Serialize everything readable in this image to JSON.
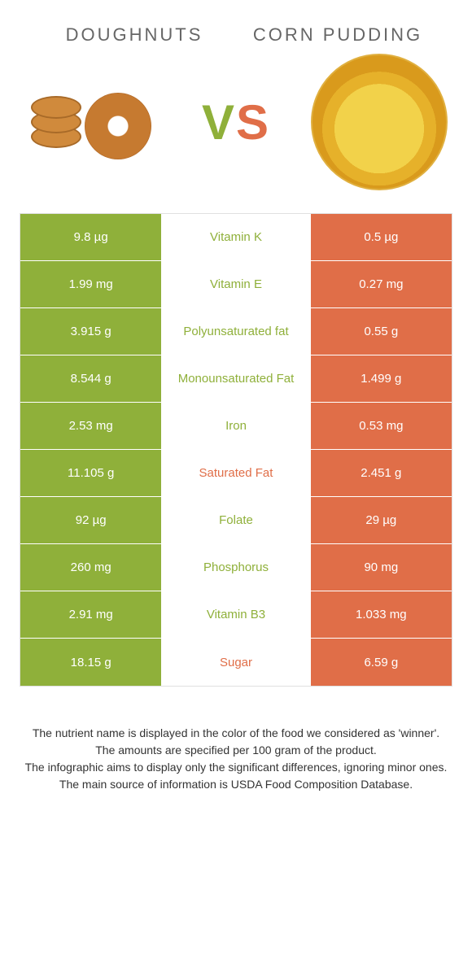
{
  "header": {
    "left_title": "DOUGHNUTS",
    "right_title": "CORN PUDDING",
    "vs_v": "V",
    "vs_s": "S"
  },
  "colors": {
    "left": "#8fb03a",
    "right": "#e06e48",
    "mid_bg": "#ffffff",
    "border": "#e0e0e0",
    "text_on_color": "#ffffff",
    "body_text": "#333333",
    "title_text": "#666666"
  },
  "rows": [
    {
      "left": "9.8 µg",
      "label": "Vitamin K",
      "right": "0.5 µg",
      "winner": "left"
    },
    {
      "left": "1.99 mg",
      "label": "Vitamin E",
      "right": "0.27 mg",
      "winner": "left"
    },
    {
      "left": "3.915 g",
      "label": "Polyunsaturated fat",
      "right": "0.55 g",
      "winner": "left"
    },
    {
      "left": "8.544 g",
      "label": "Monounsaturated Fat",
      "right": "1.499 g",
      "winner": "left"
    },
    {
      "left": "2.53 mg",
      "label": "Iron",
      "right": "0.53 mg",
      "winner": "left"
    },
    {
      "left": "11.105 g",
      "label": "Saturated Fat",
      "right": "2.451 g",
      "winner": "right"
    },
    {
      "left": "92 µg",
      "label": "Folate",
      "right": "29 µg",
      "winner": "left"
    },
    {
      "left": "260 mg",
      "label": "Phosphorus",
      "right": "90 mg",
      "winner": "left"
    },
    {
      "left": "2.91 mg",
      "label": "Vitamin B3",
      "right": "1.033 mg",
      "winner": "left"
    },
    {
      "left": "18.15 g",
      "label": "Sugar",
      "right": "6.59 g",
      "winner": "right"
    }
  ],
  "footnotes": [
    "The nutrient name is displayed in the color of the food we considered as 'winner'.",
    "The amounts are specified per 100 gram of the product.",
    "The infographic aims to display only the significant differences, ignoring minor ones.",
    "The main source of information is USDA Food Composition Database."
  ]
}
